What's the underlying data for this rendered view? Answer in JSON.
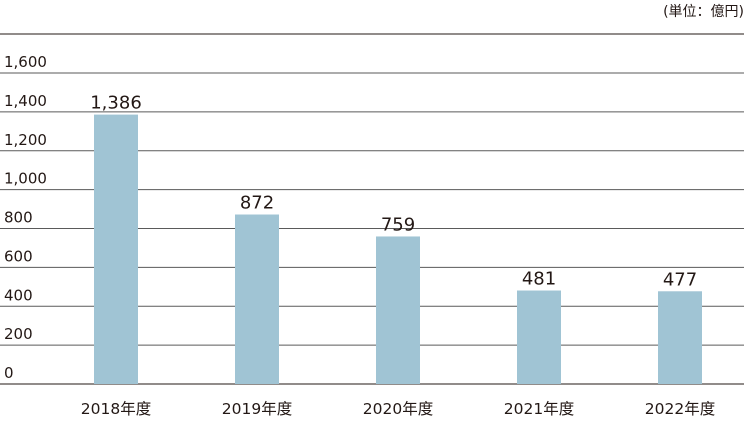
{
  "unit_label": "(単位：億円)",
  "chart_data": {
    "type": "bar",
    "categories": [
      "2018年度",
      "2019年度",
      "2020年度",
      "2021年度",
      "2022年度"
    ],
    "values": [
      1386,
      872,
      759,
      481,
      477
    ],
    "data_labels": [
      "1,386",
      "872",
      "759",
      "481",
      "477"
    ],
    "yticks": [
      0,
      200,
      400,
      600,
      800,
      1000,
      1200,
      1400,
      1600
    ],
    "ytick_labels": [
      "0",
      "200",
      "400",
      "600",
      "800",
      "1,000",
      "1,200",
      "1,400",
      "1,600"
    ],
    "ylim": [
      0,
      1600
    ],
    "grid": true,
    "colors": {
      "bar": "#a0c4d4",
      "grid": "#5a5a5a",
      "text": "#231815"
    }
  }
}
